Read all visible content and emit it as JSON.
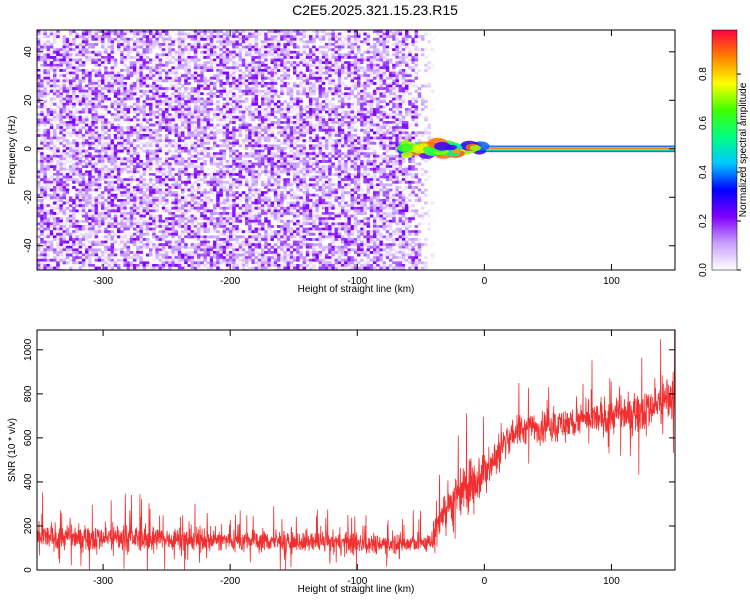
{
  "title": "C2E5.2025.321.15.23.R15",
  "chart_data": [
    {
      "type": "heatmap",
      "xlabel": "Height of straight line (km)",
      "ylabel": "Frequency (Hz)",
      "xlim": [
        -352,
        150
      ],
      "ylim": [
        -50,
        49
      ],
      "xticks": [
        -300,
        -200,
        -100,
        0,
        100
      ],
      "xtick_labels": [
        "-300",
        "-200",
        "-100",
        "0",
        "100"
      ],
      "yticks": [
        -40,
        -20,
        0,
        20,
        40
      ],
      "ytick_labels": [
        "-40",
        "-20",
        "0",
        "20",
        "40"
      ],
      "noise_region": {
        "x_from": -352,
        "x_to": -55,
        "frequency_from": -50,
        "frequency_to": 49,
        "amplitude_range": [
          0.0,
          0.15
        ]
      },
      "signal_band": {
        "x_from": -65,
        "x_to": 150,
        "frequency_center": 0,
        "half_width_hz": 1.5,
        "peak_amplitude": 0.95
      },
      "grid": false,
      "colorbar": {
        "label": "Normalized spectral amplitude",
        "range": [
          0.0,
          0.98
        ],
        "ticks": [
          0.0,
          0.2,
          0.4,
          0.6,
          0.8
        ],
        "tick_labels": [
          "0.0",
          "0.2",
          "0.4",
          "0.6",
          "0.8"
        ],
        "colormap": [
          "#ffffff",
          "#c8a0ff",
          "#8000ff",
          "#0000ff",
          "#00c8ff",
          "#00ff80",
          "#40ff00",
          "#ffff00",
          "#ff8000",
          "#ff0040"
        ]
      }
    },
    {
      "type": "line",
      "xlabel": "Height of straight line (km)",
      "ylabel": "SNR (10 * v/v)",
      "xlim": [
        -352,
        150
      ],
      "ylim": [
        0,
        1090
      ],
      "xticks": [
        -300,
        -200,
        -100,
        0,
        100
      ],
      "xtick_labels": [
        "-300",
        "-200",
        "-100",
        "0",
        "100"
      ],
      "yticks": [
        0,
        200,
        400,
        600,
        800,
        1000
      ],
      "ytick_labels": [
        "0",
        "200",
        "400",
        "600",
        "800",
        "1000"
      ],
      "grid": false,
      "series": [
        {
          "color": "#f03030",
          "trend": {
            "x": [
              -352,
              -300,
              -250,
              -200,
              -150,
              -100,
              -60,
              -42,
              -35,
              -20,
              -10,
              0,
              10,
              20,
              40,
              60,
              80,
              100,
              120,
              140,
              150
            ],
            "y": [
              150,
              148,
              142,
              135,
              128,
              122,
              120,
              125,
              250,
              330,
              400,
              440,
              520,
              620,
              650,
              660,
              680,
              700,
              720,
              760,
              800
            ],
            "spread": [
              70,
              70,
              65,
              60,
              58,
              55,
              55,
              55,
              110,
              140,
              140,
              110,
              100,
              90,
              85,
              85,
              90,
              100,
              110,
              120,
              130
            ]
          }
        }
      ]
    }
  ]
}
